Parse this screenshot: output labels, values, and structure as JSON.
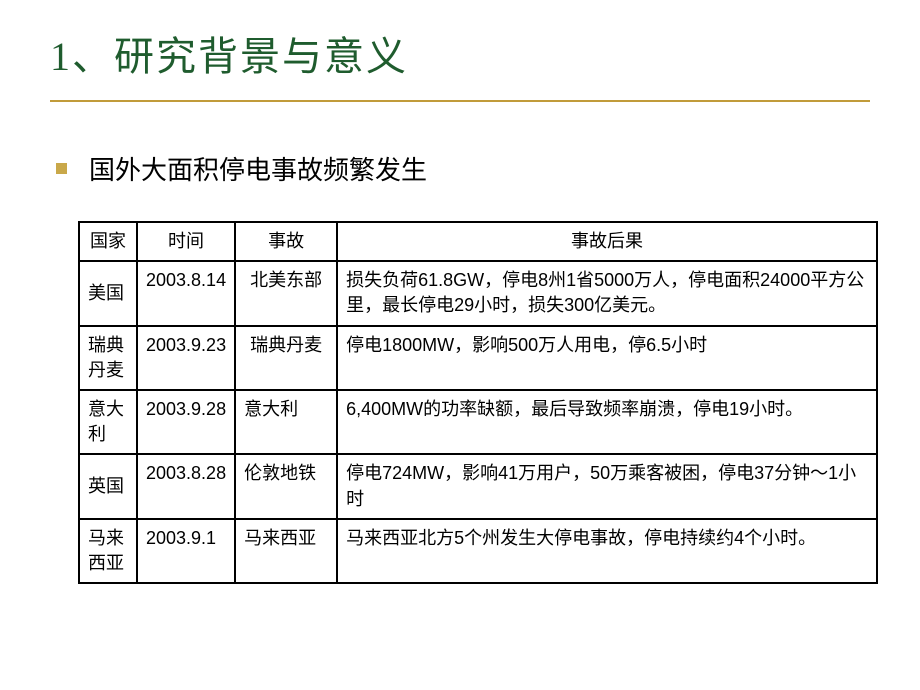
{
  "title": {
    "text": "1、研究背景与意义",
    "color": "#1f5c2e",
    "underline_color": "#c19b3a",
    "fontsize": 40
  },
  "bullet": {
    "text": "国外大面积停电事故频繁发生",
    "square_color": "#c9a84a",
    "text_color": "#000000",
    "fontsize": 26
  },
  "table": {
    "border_color": "#000000",
    "header_bg": "#ffffff",
    "cell_bg": "#ffffff",
    "fontsize": 18,
    "columns": [
      "国家",
      "时间",
      "事故",
      "事故后果"
    ],
    "rows": [
      {
        "country": "美国",
        "time": "2003.8.14",
        "event": "北美东部",
        "result": "损失负荷61.8GW，停电8州1省5000万人，停电面积24000平方公里，最长停电29小时，损失300亿美元。"
      },
      {
        "country": "瑞典丹麦",
        "time": "2003.9.23",
        "event": "瑞典丹麦",
        "result": "停电1800MW，影响500万人用电，停6.5小时"
      },
      {
        "country": "意大利",
        "time": "2003.9.28",
        "event": "意大利",
        "result": "6,400MW的功率缺额，最后导致频率崩溃，停电19小时。"
      },
      {
        "country": "英国",
        "time": "2003.8.28",
        "event": "伦敦地铁",
        "result": "停电724MW，影响41万用户，50万乘客被困，停电37分钟～1小时"
      },
      {
        "country": "马来西亚",
        "time": "2003.9.1",
        "event": "马来西亚",
        "result": "马来西亚北方5个州发生大停电事故，停电持续约4个小时。"
      }
    ]
  }
}
